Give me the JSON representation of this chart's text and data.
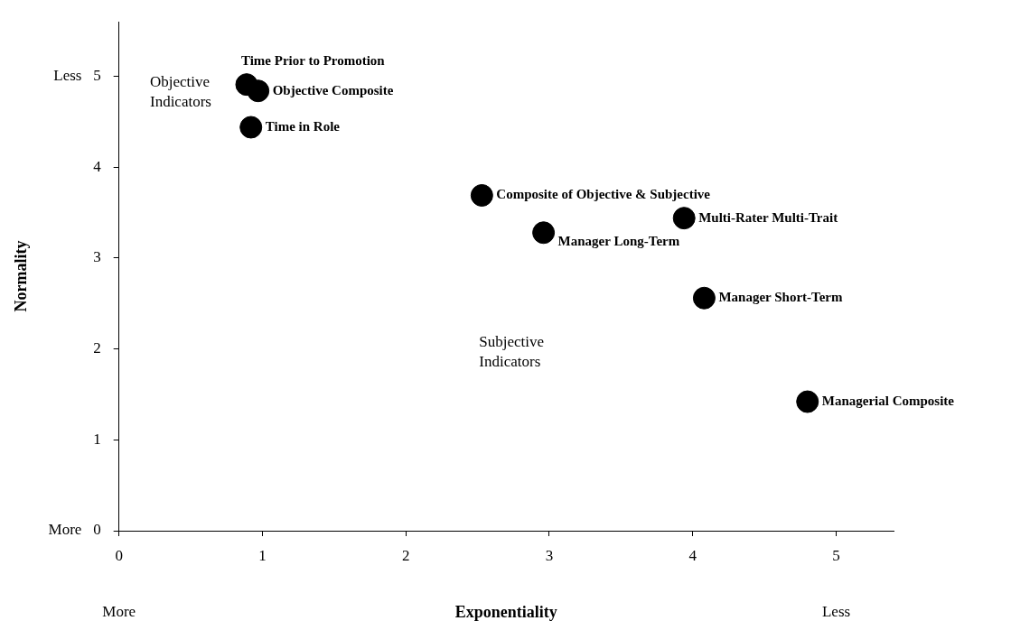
{
  "chart_data": {
    "type": "scatter",
    "xlabel": "Exponentiality",
    "ylabel": "Normality",
    "xlim": [
      0,
      5.4
    ],
    "ylim": [
      0,
      5.6
    ],
    "xticks": [
      0,
      1,
      2,
      3,
      4,
      5
    ],
    "yticks": [
      {
        "value": 0,
        "label": "More   0"
      },
      1,
      2,
      3,
      4,
      {
        "value": 5,
        "label": "Less   5"
      }
    ],
    "marker": "circle",
    "grid": false,
    "legend": false,
    "series": [
      {
        "name": "Time Prior to Promotion",
        "color": "#000000",
        "x": [
          0.89
        ],
        "values": [
          4.91
        ]
      },
      {
        "name": "Objective Composite",
        "color": "#000000",
        "x": [
          0.97
        ],
        "values": [
          4.84
        ]
      },
      {
        "name": "Time in Role",
        "color": "#000000",
        "x": [
          0.92
        ],
        "values": [
          4.44
        ]
      },
      {
        "name": "Composite of Objective & Subjective",
        "color": "#000000",
        "x": [
          2.53
        ],
        "values": [
          3.69
        ]
      },
      {
        "name": "Manager Long-Term",
        "color": "#000000",
        "x": [
          2.96
        ],
        "values": [
          3.28
        ]
      },
      {
        "name": "Multi-Rater Multi-Trait",
        "color": "#000000",
        "x": [
          3.94
        ],
        "values": [
          3.44
        ]
      },
      {
        "name": "Manager Short-Term",
        "color": "#000000",
        "x": [
          4.08
        ],
        "values": [
          2.56
        ]
      },
      {
        "name": "Managerial Composite",
        "color": "#000000",
        "x": [
          4.8
        ],
        "values": [
          1.42
        ]
      }
    ],
    "annotations": [
      "Objective\nIndicators",
      "Subjective\nIndicators",
      "More",
      "Less"
    ]
  }
}
